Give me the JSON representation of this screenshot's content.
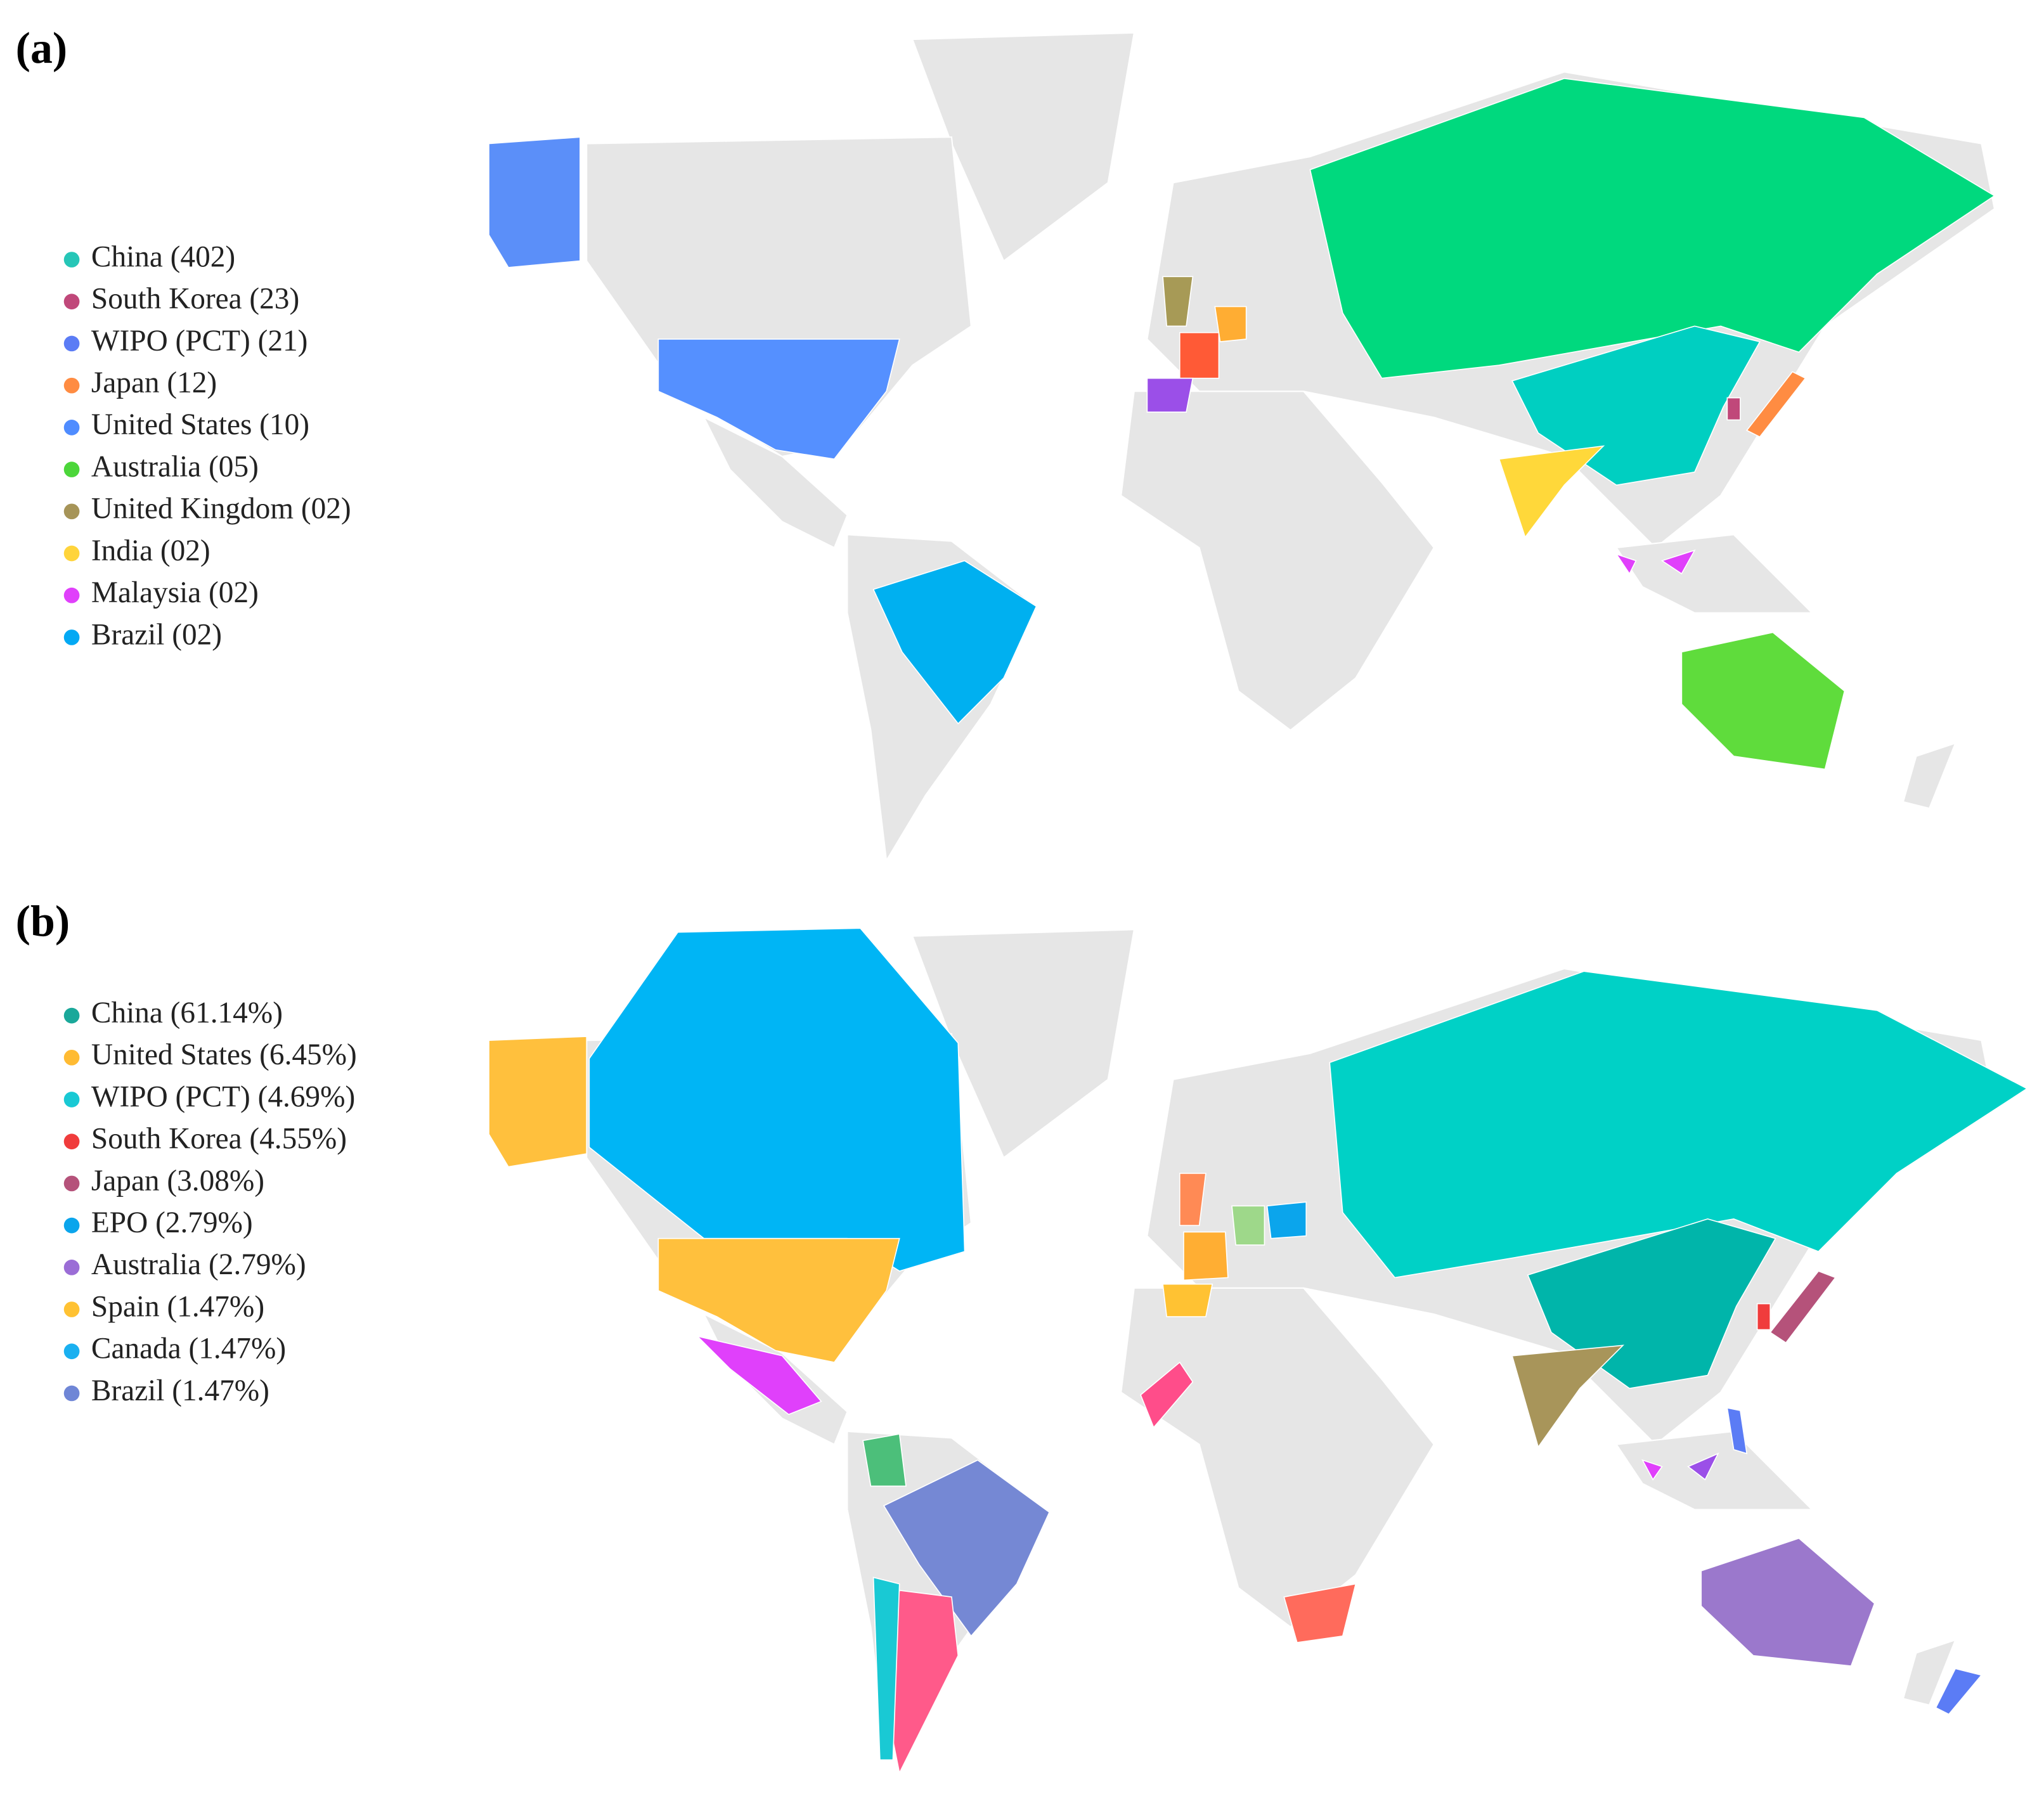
{
  "panels": [
    {
      "label": "(a)",
      "legend": [
        {
          "text": "China (402)",
          "color": "#26c6b7"
        },
        {
          "text": "South Korea (23)",
          "color": "#c0487a"
        },
        {
          "text": "WIPO (PCT) (21)",
          "color": "#5b7cf5"
        },
        {
          "text": "Japan (12)",
          "color": "#ff8c42"
        },
        {
          "text": "United States (10)",
          "color": "#4f8cff"
        },
        {
          "text": "Australia  (05)",
          "color": "#4cd63a"
        },
        {
          "text": "United Kingdom  (02)",
          "color": "#a69458"
        },
        {
          "text": "India (02)",
          "color": "#ffd43b"
        },
        {
          "text": "Malaysia (02)",
          "color": "#e040fb"
        },
        {
          "text": "Brazil (02)",
          "color": "#03a9f4"
        }
      ]
    },
    {
      "label": "(b)",
      "legend": [
        {
          "text": "China (61.14%)",
          "color": "#1aa89a"
        },
        {
          "text": "United States (6.45%)",
          "color": "#ffbb33"
        },
        {
          "text": "WIPO (PCT) (4.69%)",
          "color": "#19c9d4"
        },
        {
          "text": "South Korea (4.55%)",
          "color": "#f03c3c"
        },
        {
          "text": "Japan (3.08%)",
          "color": "#b5527a"
        },
        {
          "text": "EPO (2.79%)",
          "color": "#0ba5ec"
        },
        {
          "text": "Australia  (2.79%)",
          "color": "#9b6dd6"
        },
        {
          "text": "Spain (1.47%)",
          "color": "#ffc233"
        },
        {
          "text": "Canada (1.47%)",
          "color": "#1ab0f0"
        },
        {
          "text": "Brazil (1.47%)",
          "color": "#6f86d6"
        }
      ]
    }
  ]
}
